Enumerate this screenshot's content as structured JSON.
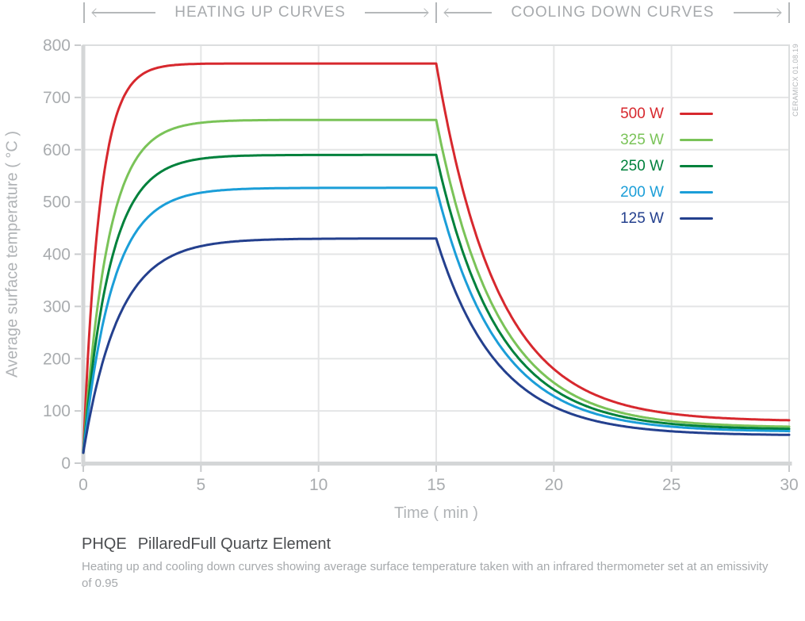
{
  "header": {
    "heating_label": "HEATING UP CURVES",
    "cooling_label": "COOLING DOWN CURVES"
  },
  "watermark": "CERAMICX 01.08.19",
  "caption": {
    "code": "PHQE",
    "name": "PillaredFull Quartz Element",
    "description": "Heating up and cooling down curves showing average surface temperature taken with an infrared thermometer set at an emissivity of 0.95"
  },
  "chart_data": {
    "type": "line",
    "title": "",
    "xlabel": "Time ( min )",
    "ylabel": "Average surface temperature ( °C )",
    "xlim": [
      0,
      30
    ],
    "ylim": [
      0,
      800
    ],
    "x_ticks": [
      0,
      5,
      10,
      15,
      20,
      25,
      30
    ],
    "y_ticks": [
      0,
      100,
      200,
      300,
      400,
      500,
      600,
      700,
      800
    ],
    "grid": true,
    "legend_position": "upper right",
    "phases": {
      "heating_min": [
        0,
        15
      ],
      "cooling_min": [
        15,
        30
      ]
    },
    "ambient_start_c": 20,
    "sample_times_min": [
      0,
      1,
      2,
      3,
      5,
      10,
      15,
      16,
      17,
      18,
      20,
      22,
      25,
      30
    ],
    "series": [
      {
        "name": "500 W",
        "color": "#d7282e",
        "plateau_c": 765,
        "heat_tau_min": 0.7,
        "cool_asymptote_c": 80,
        "cool_tau_min": 2.6,
        "temps_c_at_samples": [
          20,
          586,
          722,
          755,
          764,
          765,
          765,
          546,
          397,
          296,
          180,
          126,
          95,
          82
        ]
      },
      {
        "name": "325 W",
        "color": "#7ac358",
        "plateau_c": 657,
        "heat_tau_min": 1.05,
        "cool_asymptote_c": 68,
        "cool_tau_min": 2.6,
        "temps_c_at_samples": [
          20,
          411,
          562,
          620,
          652,
          657,
          657,
          469,
          341,
          254,
          154,
          108,
          81,
          70
        ]
      },
      {
        "name": "250 W",
        "color": "#00813c",
        "plateau_c": 590,
        "heat_tau_min": 1.15,
        "cool_asymptote_c": 64,
        "cool_tau_min": 2.6,
        "temps_c_at_samples": [
          20,
          351,
          490,
          548,
          583,
          590,
          590,
          422,
          308,
          230,
          141,
          100,
          75,
          66
        ]
      },
      {
        "name": "200 W",
        "color": "#1b9ed8",
        "plateau_c": 527,
        "heat_tau_min": 1.25,
        "cool_asymptote_c": 60,
        "cool_tau_min": 2.6,
        "temps_c_at_samples": [
          20,
          299,
          425,
          481,
          518,
          527,
          527,
          378,
          276,
          207,
          128,
          92,
          70,
          61
        ]
      },
      {
        "name": "125 W",
        "color": "#24408e",
        "plateau_c": 430,
        "heat_tau_min": 1.5,
        "cool_asymptote_c": 53,
        "cool_tau_min": 2.6,
        "temps_c_at_samples": [
          20,
          219,
          322,
          374,
          415,
          430,
          430,
          310,
          228,
          172,
          108,
          79,
          61,
          54
        ]
      }
    ]
  },
  "colors": {
    "grid": "#e4e5e6",
    "axis_bar": "#d4d6d7",
    "plot_border": "#dcdedf",
    "tick": "#c9cbcd",
    "muted_text": "#a9acaf",
    "header_line": "#b5b8ba",
    "caption_title": "#4b4d50",
    "caption_body": "#a6a9ac"
  }
}
